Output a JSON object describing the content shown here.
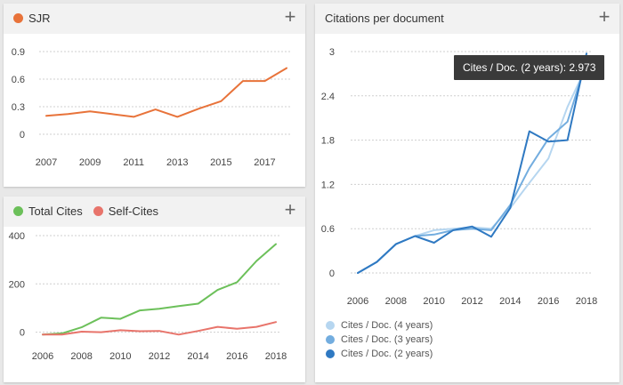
{
  "panels": {
    "sjr": {
      "title": "SJR",
      "color": "#e8733a"
    },
    "cites": {
      "legend": [
        {
          "label": "Total Cites",
          "color": "#6cc05a"
        },
        {
          "label": "Self-Cites",
          "color": "#e8746b"
        }
      ]
    },
    "cpd": {
      "title": "Citations per document",
      "tooltip": "Cites / Doc. (2 years): 2.973",
      "legend": [
        {
          "label": "Cites / Doc. (4 years)",
          "color": "#b6d6f0"
        },
        {
          "label": "Cites / Doc. (3 years)",
          "color": "#73addf"
        },
        {
          "label": "Cites / Doc. (2 years)",
          "color": "#2f79c2"
        }
      ]
    },
    "plus_symbol": "+"
  },
  "chart_data": [
    {
      "type": "line",
      "title": "SJR",
      "x": [
        2007,
        2008,
        2009,
        2010,
        2011,
        2012,
        2013,
        2014,
        2015,
        2016,
        2017,
        2018
      ],
      "series": [
        {
          "name": "SJR",
          "color": "#e8733a",
          "values": [
            0.2,
            0.22,
            0.25,
            0.22,
            0.19,
            0.27,
            0.19,
            0.28,
            0.36,
            0.58,
            0.58,
            0.72
          ]
        }
      ],
      "xticks": [
        2007,
        2009,
        2011,
        2013,
        2015,
        2017
      ],
      "yticks": [
        0,
        0.3,
        0.6,
        0.9
      ],
      "ylim": [
        0,
        0.9
      ],
      "xlim": [
        2007,
        2018
      ],
      "grid": true
    },
    {
      "type": "line",
      "x": [
        2006,
        2007,
        2008,
        2009,
        2010,
        2011,
        2012,
        2013,
        2014,
        2015,
        2016,
        2017,
        2018
      ],
      "series": [
        {
          "name": "Total Cites",
          "color": "#6cc05a",
          "values": [
            -10,
            -5,
            20,
            60,
            55,
            90,
            97,
            108,
            118,
            175,
            207,
            295,
            365
          ]
        },
        {
          "name": "Self-Cites",
          "color": "#e8746b",
          "values": [
            -10,
            -10,
            2,
            0,
            8,
            4,
            5,
            -10,
            5,
            22,
            14,
            22,
            42
          ]
        }
      ],
      "xticks": [
        2006,
        2008,
        2010,
        2012,
        2014,
        2016,
        2018
      ],
      "yticks": [
        0,
        200,
        400
      ],
      "ylim": [
        -20,
        400
      ],
      "xlim": [
        2006,
        2018
      ],
      "grid": true
    },
    {
      "type": "line",
      "title": "Citations per document",
      "x": [
        2006,
        2007,
        2008,
        2009,
        2010,
        2011,
        2012,
        2013,
        2014,
        2015,
        2016,
        2017,
        2018
      ],
      "series": [
        {
          "name": "Cites / Doc. (4 years)",
          "color": "#b6d6f0",
          "values": [
            0,
            0.15,
            0.39,
            0.5,
            0.58,
            0.6,
            0.62,
            0.6,
            0.88,
            1.22,
            1.55,
            2.25,
            2.8
          ]
        },
        {
          "name": "Cites / Doc. (3 years)",
          "color": "#73addf",
          "values": [
            0,
            0.15,
            0.39,
            0.5,
            0.52,
            0.58,
            0.6,
            0.58,
            0.92,
            1.42,
            1.82,
            2.05,
            2.87
          ]
        },
        {
          "name": "Cites / Doc. (2 years)",
          "color": "#2f79c2",
          "values": [
            0,
            0.15,
            0.39,
            0.5,
            0.41,
            0.58,
            0.63,
            0.49,
            0.88,
            1.92,
            1.78,
            1.8,
            2.973
          ]
        }
      ],
      "xticks": [
        2006,
        2008,
        2010,
        2012,
        2014,
        2016,
        2018
      ],
      "yticks": [
        0,
        0.6,
        1.2,
        1.8,
        2.4,
        3
      ],
      "ylim": [
        0,
        3
      ],
      "xlim": [
        2006,
        2018
      ],
      "grid": true
    }
  ]
}
